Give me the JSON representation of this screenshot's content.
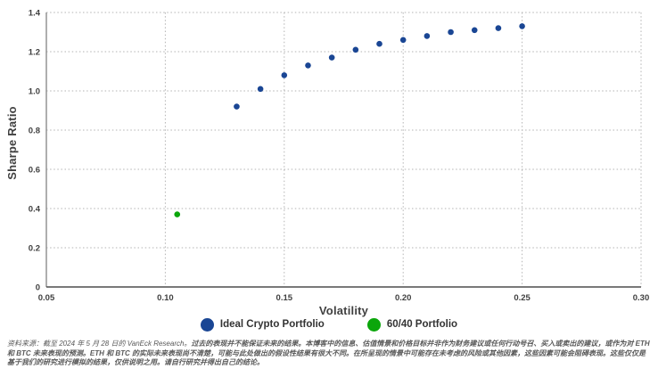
{
  "chart_data": {
    "type": "scatter",
    "title": "",
    "xlabel": "Volatility",
    "ylabel": "Sharpe Ratio",
    "xlim": [
      0.05,
      0.3
    ],
    "ylim": [
      0,
      1.4
    ],
    "grid": "dotted",
    "legend_position": "bottom-center",
    "x_ticks": [
      {
        "v": 0.05,
        "label": "0.05"
      },
      {
        "v": 0.1,
        "label": "0.10"
      },
      {
        "v": 0.15,
        "label": "0.15"
      },
      {
        "v": 0.2,
        "label": "0.20"
      },
      {
        "v": 0.25,
        "label": "0.25"
      },
      {
        "v": 0.3,
        "label": "0.30"
      }
    ],
    "y_ticks": [
      {
        "v": 0,
        "label": "0"
      },
      {
        "v": 0.2,
        "label": "0.2"
      },
      {
        "v": 0.4,
        "label": "0.4"
      },
      {
        "v": 0.6,
        "label": "0.6"
      },
      {
        "v": 0.8,
        "label": "0.8"
      },
      {
        "v": 1.0,
        "label": "1.0"
      },
      {
        "v": 1.2,
        "label": "1.2"
      },
      {
        "v": 1.4,
        "label": "1.4"
      }
    ],
    "series": [
      {
        "name": "Ideal Crypto Portfolio",
        "color": "#1a4694",
        "points": [
          [
            0.13,
            0.92
          ],
          [
            0.14,
            1.01
          ],
          [
            0.15,
            1.08
          ],
          [
            0.16,
            1.13
          ],
          [
            0.17,
            1.17
          ],
          [
            0.18,
            1.21
          ],
          [
            0.19,
            1.24
          ],
          [
            0.2,
            1.26
          ],
          [
            0.21,
            1.28
          ],
          [
            0.22,
            1.3
          ],
          [
            0.23,
            1.31
          ],
          [
            0.24,
            1.32
          ],
          [
            0.25,
            1.33
          ]
        ]
      },
      {
        "name": "60/40 Portfolio",
        "color": "#0ba60b",
        "points": [
          [
            0.105,
            0.37
          ]
        ]
      }
    ]
  },
  "footnote": {
    "source": "资料来源：截至 2024 年 5 月 28 日的 VanEck Research。",
    "disclaimer": "过去的表现并不能保证未来的结果。本博客中的信息、估值情景和价格目标并非作为财务建议或任何行动号召、买入或卖出的建议，或作为对 ETH 和 BTC 未来表现的预测。ETH 和 BTC 的实际未来表现尚不清楚，可能与此处做出的假设性结果有很大不同。在所呈现的情景中可能存在未考虑的风险或其他因素，这些因素可能会阻碍表现。这些仅仅是基于我们的研究进行模拟的结果，仅供说明之用。请自行研究并得出自己的结论。"
  },
  "colors": {
    "axis_text": "#404040",
    "legend_text": "#333333",
    "gridline": "#b3b3b3",
    "footnote_text": "#595959",
    "blue_series": "#1a4694",
    "green_series": "#0ba60b"
  }
}
